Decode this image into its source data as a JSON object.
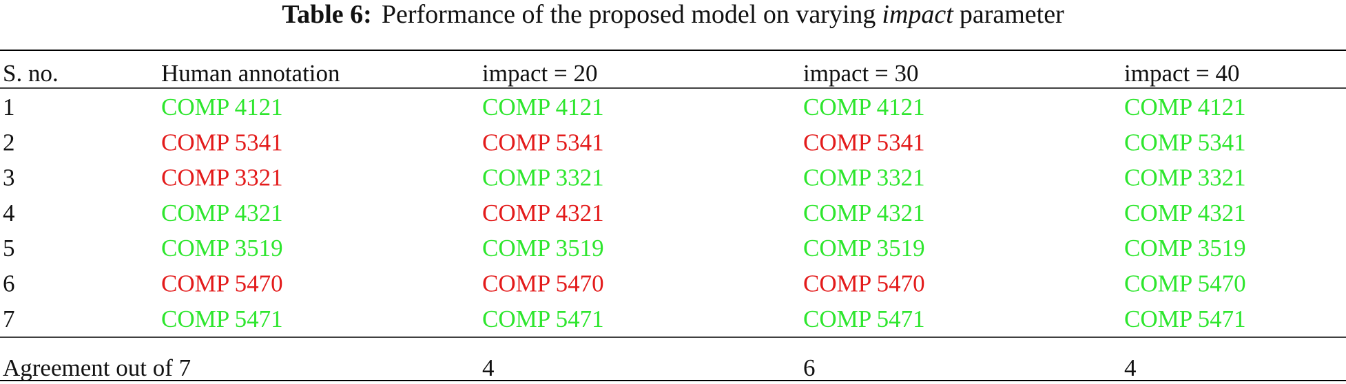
{
  "caption": {
    "label": "Table 6:",
    "text_before": "Performance of the proposed model on varying",
    "emphasis": "impact",
    "text_after": "parameter"
  },
  "table": {
    "header": [
      "S. no.",
      "Human annotation",
      "impact = 20",
      "impact = 30",
      "impact = 40"
    ],
    "rows": [
      [
        "1",
        "COMP 4121",
        "COMP 4121",
        "COMP 4121",
        "COMP 4121"
      ],
      [
        "2",
        "COMP 5341",
        "COMP 5341",
        "COMP 5341",
        "COMP 5341"
      ],
      [
        "3",
        "COMP 3321",
        "COMP 3321",
        "COMP 3321",
        "COMP 3321"
      ],
      [
        "4",
        "COMP 4321",
        "COMP 4321",
        "COMP 4321",
        "COMP 4321"
      ],
      [
        "5",
        "COMP 3519",
        "COMP 3519",
        "COMP 3519",
        "COMP 3519"
      ],
      [
        "6",
        "COMP 5470",
        "COMP 5470",
        "COMP 5470",
        "COMP 5470"
      ],
      [
        "7",
        "COMP 5471",
        "COMP 5471",
        "COMP 5471",
        "COMP 5471"
      ]
    ],
    "cell_colors": [
      [
        "green",
        "green",
        "green",
        "green"
      ],
      [
        "red",
        "red",
        "red",
        "green"
      ],
      [
        "red",
        "green",
        "green",
        "green"
      ],
      [
        "green",
        "red",
        "green",
        "green"
      ],
      [
        "green",
        "green",
        "green",
        "green"
      ],
      [
        "red",
        "red",
        "red",
        "green"
      ],
      [
        "green",
        "green",
        "green",
        "green"
      ]
    ],
    "footer": {
      "label": "Agreement out of 7",
      "values": [
        "4",
        "6",
        "4"
      ]
    }
  }
}
